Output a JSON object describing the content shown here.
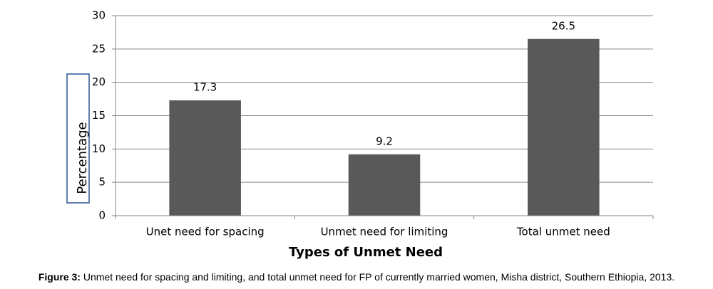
{
  "chart_data": {
    "type": "bar",
    "x_label": "Types of Unmet Need",
    "y_label": "Percentage",
    "categories": [
      "Unet need for spacing",
      "Unmet need for limiting",
      "Total unmet need"
    ],
    "values": [
      17.3,
      9.2,
      26.5
    ],
    "color": "#595959",
    "ylim": [
      0,
      30
    ],
    "yticks": [
      0,
      5,
      10,
      15,
      20,
      25,
      30
    ],
    "grid": true
  },
  "figure_caption": {
    "label": "Figure 3:",
    "text": "Unmet need for spacing and limiting, and total unmet need for FP of currently married women, Misha district, Southern Ethiopia, 2013."
  }
}
